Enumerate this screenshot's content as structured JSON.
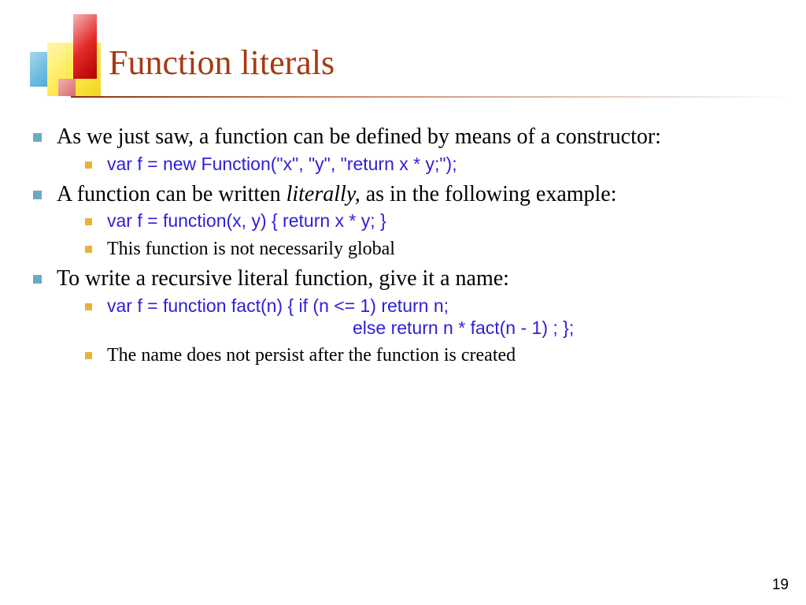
{
  "slide": {
    "title": "Function literals",
    "page_number": "19",
    "decoration_colors": {
      "red": "#e52a2a",
      "blue": "#5cb5dc",
      "yellow": "#ffe94a"
    },
    "title_color": "#a63a13",
    "bullet_level1_color": "#6aa9c8",
    "bullet_level2_color": "#e8b339",
    "code_color": "#2f1fd6",
    "body_font": "Times New Roman",
    "code_font": "Verdana",
    "items": [
      {
        "text_a": "As we just saw, a function can be defined by means of a constructor:",
        "sub": [
          {
            "code": "var f = new Function(\"x\", \"y\", \"return x * y;\");"
          }
        ]
      },
      {
        "text_a": "A function can be written ",
        "italic": "literally,",
        "text_b": " as in the following example:",
        "sub": [
          {
            "code": "var f = function(x, y) { return x * y; }"
          },
          {
            "text": "This function is not necessarily global"
          }
        ]
      },
      {
        "text_a": "To write a recursive literal function, give it a name:",
        "sub": [
          {
            "code": "var f = function fact(n) { if (n <= 1) return n;",
            "code_cont": "else return n * fact(n - 1) ; };"
          },
          {
            "text": "The name does not persist after the function is created"
          }
        ]
      }
    ]
  }
}
